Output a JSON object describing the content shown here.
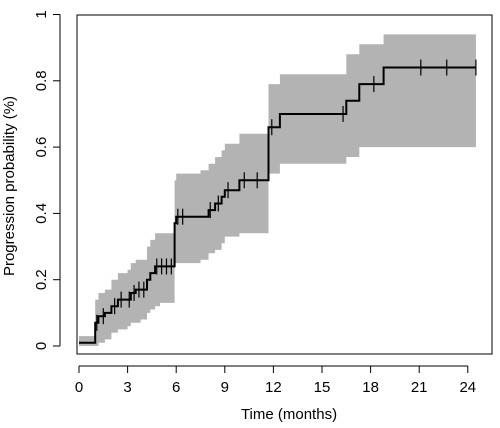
{
  "chart_data": {
    "type": "line",
    "title": "",
    "xlabel": "Time (months)",
    "ylabel": "Progression probability (%)",
    "xlim": [
      0,
      25
    ],
    "ylim": [
      0,
      1
    ],
    "grid": false,
    "x_ticks": [
      0,
      3,
      6,
      9,
      12,
      15,
      18,
      21,
      24
    ],
    "x_tick_labels": [
      "0",
      "3",
      "6",
      "9",
      "12",
      "15",
      "18",
      "21",
      "24"
    ],
    "y_ticks": [
      0,
      0.2,
      0.4,
      0.6,
      0.8,
      1
    ],
    "y_tick_labels": [
      "0",
      "0.2",
      "0.4",
      "0.6",
      "0.8",
      "1"
    ],
    "colors": {
      "line": "#000000",
      "ci_band": "#b3b3b3"
    },
    "series": [
      {
        "kind": "step-estimate",
        "x": [
          0,
          1.0,
          1.2,
          1.6,
          2.0,
          2.4,
          3.0,
          3.2,
          3.5,
          3.8,
          4.2,
          4.4,
          4.7,
          5.0,
          5.9,
          6.0,
          6.3,
          7.5,
          8.0,
          8.4,
          8.8,
          9.0,
          9.3,
          9.9,
          11.7,
          12.1,
          12.4,
          16.5,
          16.8,
          17.3,
          18.8,
          24.5
        ],
        "y": [
          0.01,
          0.07,
          0.09,
          0.1,
          0.12,
          0.14,
          0.14,
          0.16,
          0.17,
          0.17,
          0.2,
          0.22,
          0.24,
          0.24,
          0.37,
          0.39,
          0.39,
          0.39,
          0.41,
          0.43,
          0.45,
          0.47,
          0.47,
          0.5,
          0.66,
          0.66,
          0.7,
          0.74,
          0.74,
          0.79,
          0.84,
          0.84
        ]
      },
      {
        "kind": "ci-band",
        "x": [
          0,
          1.0,
          1.2,
          1.6,
          2.0,
          2.4,
          3.0,
          3.2,
          3.5,
          3.8,
          4.2,
          4.4,
          4.7,
          5.0,
          5.9,
          6.0,
          6.3,
          7.5,
          8.0,
          8.4,
          8.8,
          9.0,
          9.3,
          9.9,
          11.7,
          12.1,
          12.4,
          16.5,
          16.8,
          17.3,
          18.8,
          24.5
        ],
        "lower": [
          0.0,
          0.0,
          0.01,
          0.02,
          0.04,
          0.05,
          0.06,
          0.07,
          0.07,
          0.08,
          0.1,
          0.11,
          0.12,
          0.13,
          0.25,
          0.25,
          0.25,
          0.26,
          0.28,
          0.29,
          0.31,
          0.33,
          0.33,
          0.34,
          0.52,
          0.52,
          0.55,
          0.57,
          0.57,
          0.6,
          0.6,
          0.6
        ],
        "upper": [
          0.03,
          0.14,
          0.16,
          0.17,
          0.2,
          0.22,
          0.23,
          0.25,
          0.26,
          0.26,
          0.3,
          0.32,
          0.34,
          0.34,
          0.5,
          0.52,
          0.52,
          0.53,
          0.55,
          0.57,
          0.59,
          0.61,
          0.61,
          0.64,
          0.79,
          0.79,
          0.82,
          0.88,
          0.88,
          0.91,
          0.94,
          0.94
        ]
      }
    ],
    "censor_times": [
      1.1,
      1.5,
      2.2,
      2.6,
      3.1,
      3.4,
      3.7,
      4.0,
      4.8,
      5.1,
      5.4,
      5.7,
      6.1,
      6.4,
      8.1,
      8.6,
      9.2,
      10.2,
      11.0,
      11.9,
      16.3,
      18.2,
      21.1,
      22.7,
      24.5
    ]
  }
}
